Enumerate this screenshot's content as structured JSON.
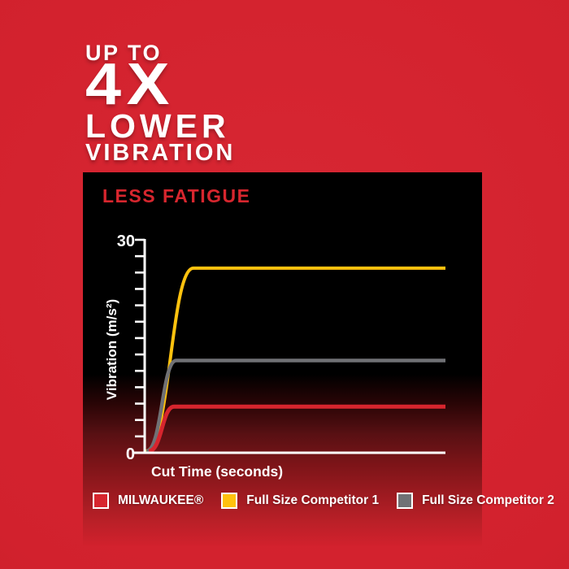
{
  "headline": {
    "line1": "UP TO",
    "line2": "4X",
    "line3": "LOWER",
    "line4": "VIBRATION"
  },
  "panel": {
    "title": "LESS FATIGUE"
  },
  "colors": {
    "background_red": "#d2212d",
    "headline_white": "#ffffff",
    "panel_black": "#000000",
    "accent_red": "#d7262e",
    "axis_white": "#ffffff",
    "milwaukee_red": "#d7252e",
    "competitor1_yellow": "#ffc20e",
    "competitor2_gray": "#707175"
  },
  "chart_data": {
    "type": "line",
    "title": "LESS FATIGUE",
    "xlabel": "Cut Time (seconds)",
    "ylabel": "Vibration (m/s²)",
    "ylim": [
      0,
      30
    ],
    "xlim_label": "unlabeled time axis",
    "y_axis": {
      "max_label": "30",
      "min_label": "0",
      "tick_count": 14,
      "grid": false
    },
    "series": [
      {
        "name": "Full Size Competitor 1",
        "color": "#ffc20e",
        "plateau": 26,
        "rise_frac": 0.16,
        "x_offset": 1,
        "stroke_width": 4,
        "shape": "sigmoid rise from 0 then flat plateau"
      },
      {
        "name": "Full Size Competitor 2",
        "color": "#707175",
        "plateau": 13,
        "rise_frac": 0.1,
        "x_offset": 2,
        "stroke_width": 4.5,
        "shape": "sigmoid rise from 0 then flat plateau"
      },
      {
        "name": "MILWAUKEE®",
        "color": "#d7252e",
        "plateau": 6.5,
        "rise_frac": 0.085,
        "x_offset": 5,
        "stroke_width": 5,
        "shape": "sigmoid rise from 0 then flat plateau"
      }
    ],
    "legend_position": "bottom",
    "legend": [
      {
        "label": "MILWAUKEE®",
        "color": "#d7252e"
      },
      {
        "label": "Full Size Competitor 1",
        "color": "#ffc20e"
      },
      {
        "label": "Full Size Competitor 2",
        "color": "#707175"
      }
    ]
  }
}
